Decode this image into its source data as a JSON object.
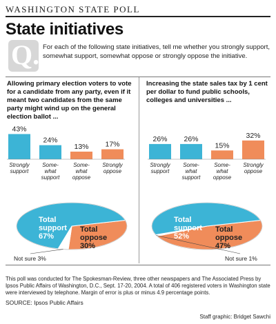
{
  "header": {
    "kicker": "WASHINGTON STATE POLL",
    "title": "State initiatives"
  },
  "question": {
    "mark": "Q.",
    "text": "For each of the following state initiatives, tell me whether you strongly support, somewhat support, somewhat oppose or strongly oppose the initiative."
  },
  "colors": {
    "support": "#3cb4d6",
    "oppose": "#f08c5a",
    "question_box": "#d7d7d7"
  },
  "chart_data": [
    {
      "type": "bar",
      "question": "Allowing primary election voters to vote for a candidate from any party, even if it meant two candidates from the same party might wind up on the general election ballot ...",
      "categories": [
        "Strongly support",
        "Some-what support",
        "Some-what oppose",
        "Strongly oppose"
      ],
      "tick_labels": [
        [
          "Strongly",
          "support"
        ],
        [
          "Some-",
          "what",
          "support"
        ],
        [
          "Some-",
          "what",
          "oppose"
        ],
        [
          "Strongly",
          "oppose"
        ]
      ],
      "values": [
        43,
        24,
        13,
        17
      ],
      "value_labels": [
        "43%",
        "24%",
        "13%",
        "17%"
      ],
      "pie": {
        "slices": [
          {
            "label": "Total support",
            "value": 67,
            "value_label": "67%"
          },
          {
            "label": "Total oppose",
            "value": 30,
            "value_label": "30%"
          },
          {
            "label": "Not sure",
            "value": 3,
            "value_label": "3%"
          }
        ]
      }
    },
    {
      "type": "bar",
      "question": "Increasing the state sales tax by 1 cent per dollar to fund public schools, colleges and universities ...",
      "categories": [
        "Strongly support",
        "Some-what support",
        "Some-what oppose",
        "Strongly oppose"
      ],
      "tick_labels": [
        [
          "Strongly",
          "support"
        ],
        [
          "Some-",
          "what",
          "support"
        ],
        [
          "Some-",
          "what",
          "oppose"
        ],
        [
          "Strongly",
          "oppose"
        ]
      ],
      "values": [
        26,
        26,
        15,
        32
      ],
      "value_labels": [
        "26%",
        "26%",
        "15%",
        "32%"
      ],
      "pie": {
        "slices": [
          {
            "label": "Total support",
            "value": 52,
            "value_label": "52%"
          },
          {
            "label": "Total oppose",
            "value": 47,
            "value_label": "47%"
          },
          {
            "label": "Not sure",
            "value": 1,
            "value_label": "1%"
          }
        ]
      }
    }
  ],
  "footnote": "This poll was conducted for The Spokesman-Review, three other newspapers and The Associated Press by Ipsos Public Affairs of Washington, D.C., Sept. 17-20, 2004. A total of 406 registered voters in Washington state were interviewed by telephone. Margin of error is plus or minus 4.9 percentage points.",
  "source": "SOURCE: Ipsos Public Affairs",
  "credit": "Staff graphic: Bridget Sawchi"
}
